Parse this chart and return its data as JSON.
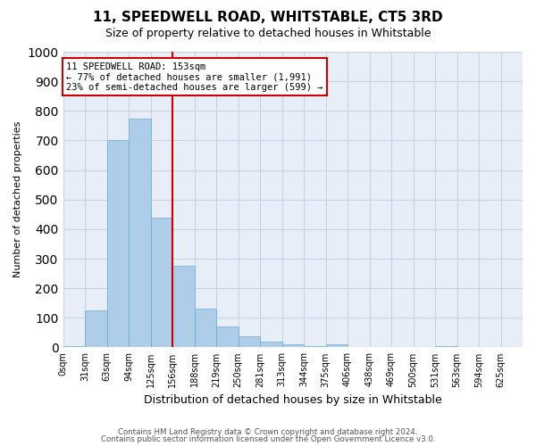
{
  "title": "11, SPEEDWELL ROAD, WHITSTABLE, CT5 3RD",
  "subtitle": "Size of property relative to detached houses in Whitstable",
  "xlabel": "Distribution of detached houses by size in Whitstable",
  "ylabel": "Number of detached properties",
  "bin_labels": [
    "0sqm",
    "31sqm",
    "63sqm",
    "94sqm",
    "125sqm",
    "156sqm",
    "188sqm",
    "219sqm",
    "250sqm",
    "281sqm",
    "313sqm",
    "344sqm",
    "375sqm",
    "406sqm",
    "438sqm",
    "469sqm",
    "500sqm",
    "531sqm",
    "563sqm",
    "594sqm",
    "625sqm"
  ],
  "bar_heights": [
    5,
    125,
    700,
    775,
    440,
    275,
    130,
    70,
    38,
    20,
    10,
    5,
    10,
    0,
    0,
    0,
    0,
    5,
    0,
    0,
    0
  ],
  "bar_color": "#aecde8",
  "bar_edge_color": "#6aaad4",
  "property_bin": 4,
  "annotation_line1": "11 SPEEDWELL ROAD: 153sqm",
  "annotation_line2": "← 77% of detached houses are smaller (1,991)",
  "annotation_line3": "23% of semi-detached houses are larger (599) →",
  "annotation_box_color": "#ffffff",
  "annotation_box_edge_color": "#cc0000",
  "vline_color": "#cc0000",
  "ylim": [
    0,
    1000
  ],
  "yticks": [
    0,
    100,
    200,
    300,
    400,
    500,
    600,
    700,
    800,
    900,
    1000
  ],
  "grid_color": "#c8d4e4",
  "background_color": "#e8eef8",
  "footer_line1": "Contains HM Land Registry data © Crown copyright and database right 2024.",
  "footer_line2": "Contains public sector information licensed under the Open Government Licence v3.0."
}
